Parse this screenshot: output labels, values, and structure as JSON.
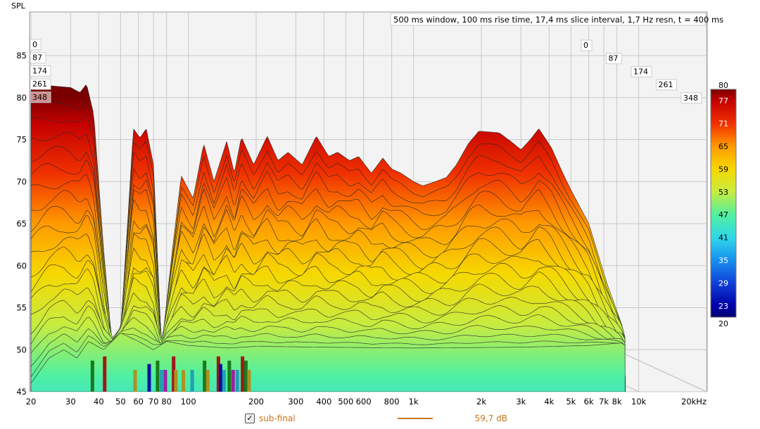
{
  "chart_data": {
    "type": "area",
    "subtype": "waterfall",
    "ylabel": "SPL",
    "info_text": "500 ms window, 100 ms rise time, 17,4 ms slice interval, 1,7 Hz resn, t = 400 ms",
    "x_scale": "log",
    "xlim": [
      20,
      20000
    ],
    "ylim": [
      45,
      88
    ],
    "y_ticks": [
      "45",
      "50",
      "55",
      "60",
      "65",
      "70",
      "75",
      "80",
      "85"
    ],
    "x_ticks": [
      {
        "v": 20,
        "label": "20"
      },
      {
        "v": 30,
        "label": "30"
      },
      {
        "v": 40,
        "label": "40"
      },
      {
        "v": 50,
        "label": "50"
      },
      {
        "v": 60,
        "label": "60"
      },
      {
        "v": 70,
        "label": "70"
      },
      {
        "v": 80,
        "label": "80"
      },
      {
        "v": 100,
        "label": "100"
      },
      {
        "v": 200,
        "label": "200"
      },
      {
        "v": 300,
        "label": "300"
      },
      {
        "v": 400,
        "label": "400"
      },
      {
        "v": 500,
        "label": "500"
      },
      {
        "v": 600,
        "label": "600"
      },
      {
        "v": 800,
        "label": "800"
      },
      {
        "v": 1000,
        "label": "1k"
      },
      {
        "v": 2000,
        "label": "2k"
      },
      {
        "v": 3000,
        "label": "3k"
      },
      {
        "v": 4000,
        "label": "4k"
      },
      {
        "v": 5000,
        "label": "5k"
      },
      {
        "v": 6000,
        "label": "6k"
      },
      {
        "v": 7000,
        "label": "7k"
      },
      {
        "v": 8000,
        "label": "8k"
      },
      {
        "v": 10000,
        "label": "10k"
      },
      {
        "v": 20000,
        "label": "20kHz"
      }
    ],
    "slice_time_labels_ms": [
      "0",
      "87",
      "174",
      "261",
      "348"
    ],
    "slice_count": 21,
    "first_slice": [
      [
        20,
        81.6
      ],
      [
        30,
        81.2
      ],
      [
        33,
        80.6
      ],
      [
        35.3,
        81.6
      ],
      [
        38,
        78
      ],
      [
        42,
        62
      ],
      [
        46,
        50
      ],
      [
        50,
        52
      ],
      [
        54,
        66
      ],
      [
        57,
        76.3
      ],
      [
        61,
        75.2
      ],
      [
        65,
        76.3
      ],
      [
        70,
        72
      ],
      [
        76,
        50
      ],
      [
        85,
        62
      ],
      [
        93,
        70.7
      ],
      [
        105,
        68
      ],
      [
        117,
        74.5
      ],
      [
        130,
        70
      ],
      [
        148,
        74.8
      ],
      [
        160,
        71
      ],
      [
        172,
        75.3
      ],
      [
        195,
        72
      ],
      [
        224,
        75.4
      ],
      [
        250,
        72.5
      ],
      [
        277,
        73.5
      ],
      [
        320,
        72
      ],
      [
        370,
        75.4
      ],
      [
        420,
        73
      ],
      [
        460,
        73.5
      ],
      [
        520,
        72.5
      ],
      [
        570,
        73
      ],
      [
        650,
        71
      ],
      [
        730,
        72.8
      ],
      [
        800,
        71.5
      ],
      [
        880,
        71
      ],
      [
        1000,
        70
      ],
      [
        1100,
        69.5
      ],
      [
        1250,
        70
      ],
      [
        1400,
        70.5
      ],
      [
        1550,
        72
      ],
      [
        1750,
        74.5
      ],
      [
        1950,
        76
      ],
      [
        2200,
        75.9
      ],
      [
        2400,
        75.8
      ],
      [
        2700,
        74.8
      ],
      [
        3000,
        73.8
      ],
      [
        3300,
        75
      ],
      [
        3600,
        76.3
      ],
      [
        4100,
        74
      ],
      [
        4600,
        71
      ],
      [
        5000,
        69
      ],
      [
        6000,
        65
      ],
      [
        7200,
        58
      ],
      [
        8400,
        53
      ],
      [
        8700,
        51
      ]
    ],
    "last_slice": [
      [
        20,
        46
      ],
      [
        24,
        49
      ],
      [
        28,
        50
      ],
      [
        32,
        49
      ],
      [
        36,
        51
      ],
      [
        42,
        50
      ],
      [
        50,
        52
      ],
      [
        60,
        51
      ],
      [
        70,
        50
      ],
      [
        80,
        51
      ],
      [
        100,
        50.5
      ],
      [
        150,
        50.2
      ],
      [
        200,
        50.4
      ],
      [
        400,
        50.3
      ],
      [
        1000,
        50.2
      ],
      [
        3000,
        50.3
      ],
      [
        6000,
        50.5
      ],
      [
        8400,
        50.8
      ],
      [
        8700,
        50.5
      ]
    ],
    "color_scale": {
      "min": 20,
      "max": 80,
      "tick_labels": [
        "80",
        "77",
        "71",
        "65",
        "59",
        "53",
        "47",
        "41",
        "35",
        "29",
        "23",
        "20"
      ],
      "stops": [
        {
          "v": 80,
          "c": "#7a0000"
        },
        {
          "v": 77,
          "c": "#c40000"
        },
        {
          "v": 71,
          "c": "#f03000"
        },
        {
          "v": 65,
          "c": "#ff9a00"
        },
        {
          "v": 59,
          "c": "#f6d800"
        },
        {
          "v": 53,
          "c": "#c8ec40"
        },
        {
          "v": 47,
          "c": "#50f0a0"
        },
        {
          "v": 41,
          "c": "#30d8e8"
        },
        {
          "v": 35,
          "c": "#1890f0"
        },
        {
          "v": 29,
          "c": "#1040d8"
        },
        {
          "v": 23,
          "c": "#0000a8"
        },
        {
          "v": 20,
          "c": "#000070"
        }
      ]
    },
    "markers": [
      {
        "f": 37.5,
        "top": 48.7,
        "color": "#1a7a1a"
      },
      {
        "f": 42.5,
        "top": 49.2,
        "color": "#a01818"
      },
      {
        "f": 58,
        "top": 47.6,
        "color": "#b09020"
      },
      {
        "f": 67,
        "top": 48.3,
        "color": "#1010a0"
      },
      {
        "f": 73,
        "top": 48.7,
        "color": "#1a7a1a"
      },
      {
        "f": 76,
        "top": 47.6,
        "color": "#20a0b0"
      },
      {
        "f": 79,
        "top": 47.6,
        "color": "#a020a0"
      },
      {
        "f": 86,
        "top": 49.2,
        "color": "#a01818"
      },
      {
        "f": 88,
        "top": 47.6,
        "color": "#b09020"
      },
      {
        "f": 95,
        "top": 47.6,
        "color": "#b09020"
      },
      {
        "f": 104,
        "top": 47.6,
        "color": "#20a0b0"
      },
      {
        "f": 118,
        "top": 48.7,
        "color": "#1a7a1a"
      },
      {
        "f": 122,
        "top": 47.6,
        "color": "#b09020"
      },
      {
        "f": 136,
        "top": 49.2,
        "color": "#a01818"
      },
      {
        "f": 139,
        "top": 48.3,
        "color": "#1010a0"
      },
      {
        "f": 144,
        "top": 47.6,
        "color": "#20a0b0"
      },
      {
        "f": 152,
        "top": 48.7,
        "color": "#1a7a1a"
      },
      {
        "f": 158,
        "top": 47.6,
        "color": "#a020a0"
      },
      {
        "f": 165,
        "top": 47.6,
        "color": "#20a0b0"
      },
      {
        "f": 174,
        "top": 49.2,
        "color": "#a01818"
      },
      {
        "f": 180,
        "top": 48.7,
        "color": "#1a7a1a"
      },
      {
        "f": 186,
        "top": 47.6,
        "color": "#b09020"
      }
    ]
  },
  "legend": {
    "checked": true,
    "check_glyph": "✓",
    "series_name": "sub-final",
    "value": "59,7 dB",
    "color": "#c87820"
  }
}
